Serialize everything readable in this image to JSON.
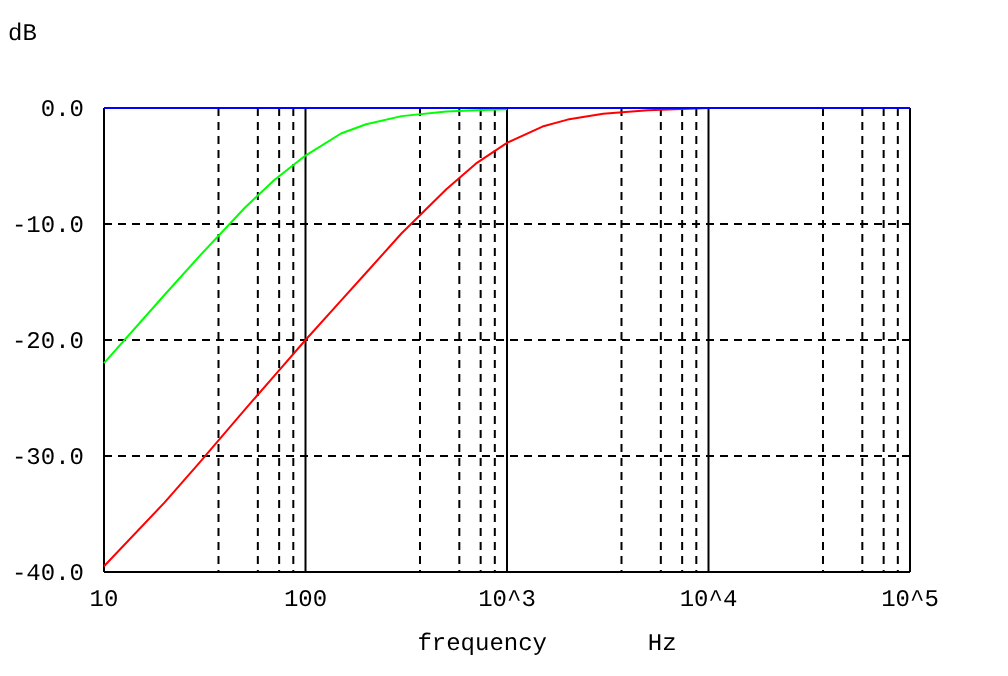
{
  "chart_data": {
    "type": "line",
    "ylabel": "dB",
    "xlabel": "frequency       Hz",
    "log": "x",
    "grid": true,
    "line_style": "solid",
    "marker": "none",
    "xlim": [
      10,
      100000
    ],
    "ylim": [
      -40,
      0
    ],
    "xticks": [
      10,
      {
        "value": 37,
        "label": null
      },
      {
        "value": 58,
        "label": null
      },
      {
        "value": 74,
        "label": null
      },
      {
        "value": 87,
        "label": null
      },
      100,
      {
        "value": 370,
        "label": null
      },
      {
        "value": 580,
        "label": null
      },
      {
        "value": 740,
        "label": null
      },
      {
        "value": 870,
        "label": null
      },
      {
        "value": 1000,
        "label": "10^3"
      },
      {
        "value": 3700,
        "label": null
      },
      {
        "value": 5800,
        "label": null
      },
      {
        "value": 7400,
        "label": null
      },
      {
        "value": 8700,
        "label": null
      },
      {
        "value": 10000,
        "label": "10^4"
      },
      {
        "value": 37000,
        "label": null
      },
      {
        "value": 58000,
        "label": null
      },
      {
        "value": 74000,
        "label": null
      },
      {
        "value": 87000,
        "label": null
      },
      {
        "value": 100000,
        "label": "10^5"
      }
    ],
    "yticks": [
      {
        "value": -40,
        "label": "-40.0"
      },
      {
        "value": -30,
        "label": "-30.0"
      },
      {
        "value": -20,
        "label": "-20.0"
      },
      {
        "value": -10,
        "label": "-10.0"
      },
      {
        "value": 0,
        "label": "0.0"
      }
    ],
    "x": [
      10,
      20,
      30,
      50,
      70,
      100,
      150,
      200,
      300,
      500,
      700,
      1000,
      1500,
      2000,
      3000,
      5000,
      10000,
      100000
    ],
    "series": [
      {
        "color": "#00ff00",
        "values": [
          -22.0,
          -16.1,
          -12.7,
          -8.6,
          -6.2,
          -4.1,
          -2.2,
          -1.4,
          -0.7,
          -0.3,
          -0.2,
          -0.1,
          null,
          null,
          null,
          null,
          null,
          null
        ]
      },
      {
        "color": "#ff0000",
        "values": [
          -39.5,
          -34.0,
          -30.5,
          -26.0,
          -23.1,
          -20.0,
          -16.6,
          -14.2,
          -10.8,
          -7.0,
          -4.8,
          -3.0,
          -1.6,
          -1.0,
          -0.5,
          -0.2,
          0,
          0
        ]
      },
      {
        "color": "#0000ff",
        "values": [
          0,
          0,
          0,
          0,
          0,
          0,
          0,
          0,
          0,
          0,
          0,
          0,
          0,
          0,
          0,
          0,
          0,
          0
        ]
      }
    ]
  }
}
